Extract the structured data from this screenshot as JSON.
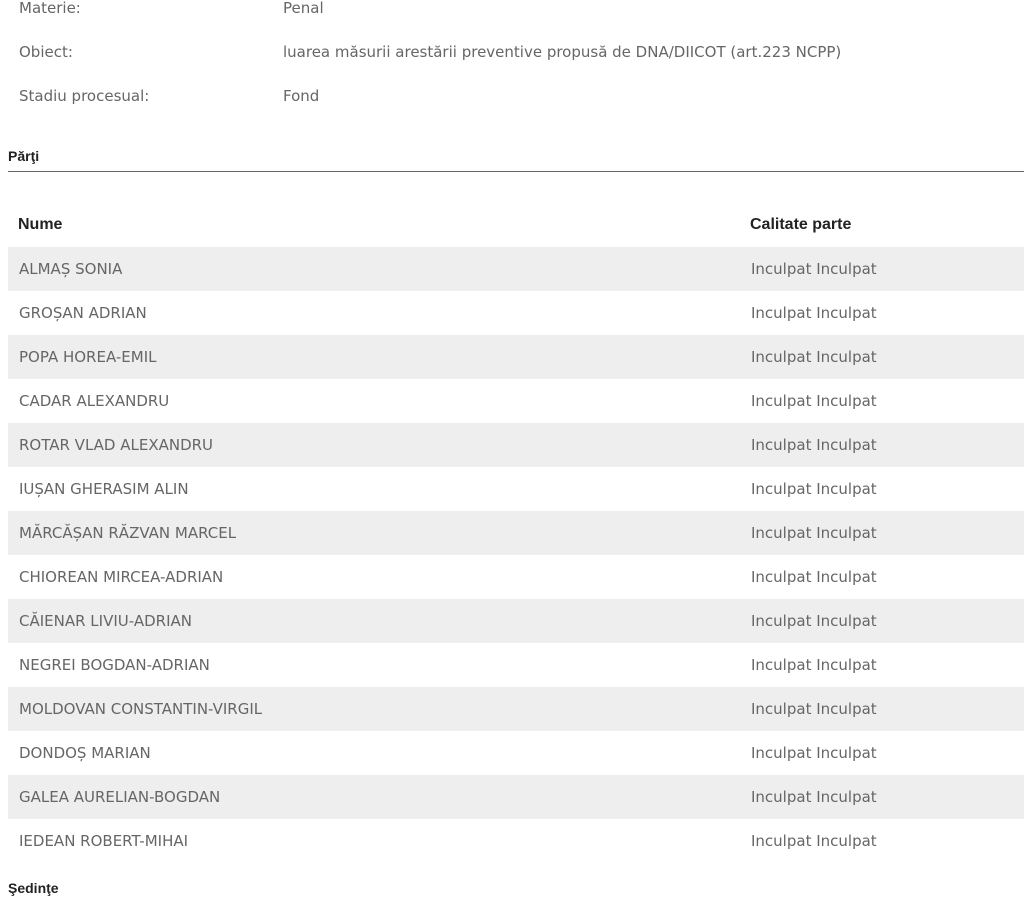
{
  "info": [
    {
      "label": "Materie:",
      "value": "Penal"
    },
    {
      "label": "Obiect:",
      "value": "luarea măsurii arestării preventive propusă de DNA/DIICOT (art.223 NCPP)"
    },
    {
      "label": "Stadiu procesual:",
      "value": "Fond"
    }
  ],
  "parti": {
    "title": "Părţi",
    "columns": [
      "Nume",
      "Calitate parte"
    ],
    "rows": [
      [
        "ALMAȘ SONIA",
        "Inculpat Inculpat"
      ],
      [
        "GROȘAN ADRIAN",
        "Inculpat Inculpat"
      ],
      [
        "POPA HOREA-EMIL",
        "Inculpat Inculpat"
      ],
      [
        "CADAR ALEXANDRU",
        "Inculpat Inculpat"
      ],
      [
        "ROTAR VLAD ALEXANDRU",
        "Inculpat Inculpat"
      ],
      [
        "IUȘAN GHERASIM ALIN",
        "Inculpat Inculpat"
      ],
      [
        "MĂRCĂȘAN RĂZVAN MARCEL",
        "Inculpat Inculpat"
      ],
      [
        "CHIOREAN MIRCEA-ADRIAN",
        "Inculpat Inculpat"
      ],
      [
        "CĂIENAR LIVIU-ADRIAN",
        "Inculpat Inculpat"
      ],
      [
        "NEGREI BOGDAN-ADRIAN",
        "Inculpat Inculpat"
      ],
      [
        "MOLDOVAN CONSTANTIN-VIRGIL",
        "Inculpat Inculpat"
      ],
      [
        "DONDOȘ MARIAN",
        "Inculpat Inculpat"
      ],
      [
        "GALEA AURELIAN-BOGDAN",
        "Inculpat Inculpat"
      ],
      [
        "IEDEAN ROBERT-MIHAI",
        "Inculpat Inculpat"
      ]
    ]
  },
  "next_section": {
    "title": "Şedinţe"
  },
  "colors": {
    "row_stripe": "#eeeeee",
    "text": "#666666",
    "heading": "#222222"
  }
}
